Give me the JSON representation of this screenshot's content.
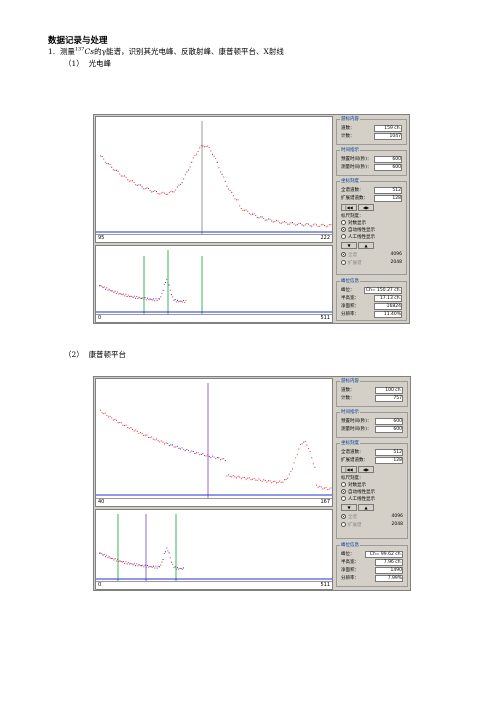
{
  "heading": "数据记录与处理",
  "item1": {
    "num": "1.",
    "pre": "测量",
    "sup": "137",
    "elem": "Cs",
    "post": "的γ能谱，识别其光电峰、反散射峰、康普顿平台、X射线"
  },
  "screens": [
    {
      "caption_num": "（1）",
      "caption": "光电峰",
      "top_axis": {
        "left": "95",
        "right": "222"
      },
      "bottom_axis": {
        "left": "0",
        "right": "511"
      },
      "panel": {
        "g1_title": "游标内容",
        "g1_rows": [
          {
            "k": "道数：",
            "v": "159 ch."
          },
          {
            "k": "计数：",
            "v": "1047"
          }
        ],
        "g2_title": "时间指示",
        "g2_rows": [
          {
            "k": "预置时间(秒)：",
            "v": "600"
          },
          {
            "k": "测量时间(秒)：",
            "v": "600"
          }
        ],
        "g3_title": "坐标刻度",
        "g3_rows": [
          {
            "k": "全谱道数：",
            "v": "512"
          },
          {
            "k": "扩展谱道数：",
            "v": "128"
          }
        ],
        "g3_sub": "标尺刻度：",
        "radios": [
          "对数显示",
          "自动线性显示",
          "人工线性显示"
        ],
        "radio_on": 1,
        "r2": [
          "全谱",
          "扩展谱"
        ],
        "r2_vals": [
          "4096",
          "2048"
        ],
        "g4_title": "峰位信息",
        "g4_rows": [
          {
            "k": "峰位：",
            "v": "Ch= 150.27 ch."
          },
          {
            "k": "半高宽：",
            "v": "17.13 ch."
          },
          {
            "k": "净面积：",
            "v": "16824"
          },
          {
            "k": "分辨率：",
            "v": "11.40%"
          }
        ]
      }
    },
    {
      "caption_num": "（2）",
      "caption": "康普顿平台",
      "top_axis": {
        "left": "40",
        "right": "167"
      },
      "bottom_axis": {
        "left": "0",
        "right": "511"
      },
      "panel": {
        "g1_title": "游标内容",
        "g1_rows": [
          {
            "k": "道数：",
            "v": "100 ch."
          },
          {
            "k": "计数：",
            "v": "757"
          }
        ],
        "g2_title": "时间指示",
        "g2_rows": [
          {
            "k": "预置时间(秒)：",
            "v": "600"
          },
          {
            "k": "测量时间(秒)：",
            "v": "600"
          }
        ],
        "g3_title": "坐标刻度",
        "g3_rows": [
          {
            "k": "全谱道数：",
            "v": "512"
          },
          {
            "k": "扩展谱道数：",
            "v": "128"
          }
        ],
        "g3_sub": "标尺刻度：",
        "radios": [
          "对数显示",
          "自动线性显示",
          "人工线性显示"
        ],
        "radio_on": 1,
        "r2": [
          "全谱",
          "扩展谱"
        ],
        "r2_vals": [
          "4096",
          "2048"
        ],
        "g4_title": "峰位信息",
        "g4_rows": [
          {
            "k": "峰位：",
            "v": "Ch= 99.62 ch."
          },
          {
            "k": "半高宽：",
            "v": "7.96 ch."
          },
          {
            "k": "净面积：",
            "v": "1490"
          },
          {
            "k": "分辨率：",
            "v": "7.99%"
          }
        ]
      }
    }
  ],
  "colors": {
    "spectrum_red": "#e0303a",
    "spectrum_blue": "#2030d0",
    "cursor_gray": "#808080",
    "marker_green": "#10a030",
    "marker_purple": "#8040c0",
    "panel_bg": "#d4d0c8"
  }
}
